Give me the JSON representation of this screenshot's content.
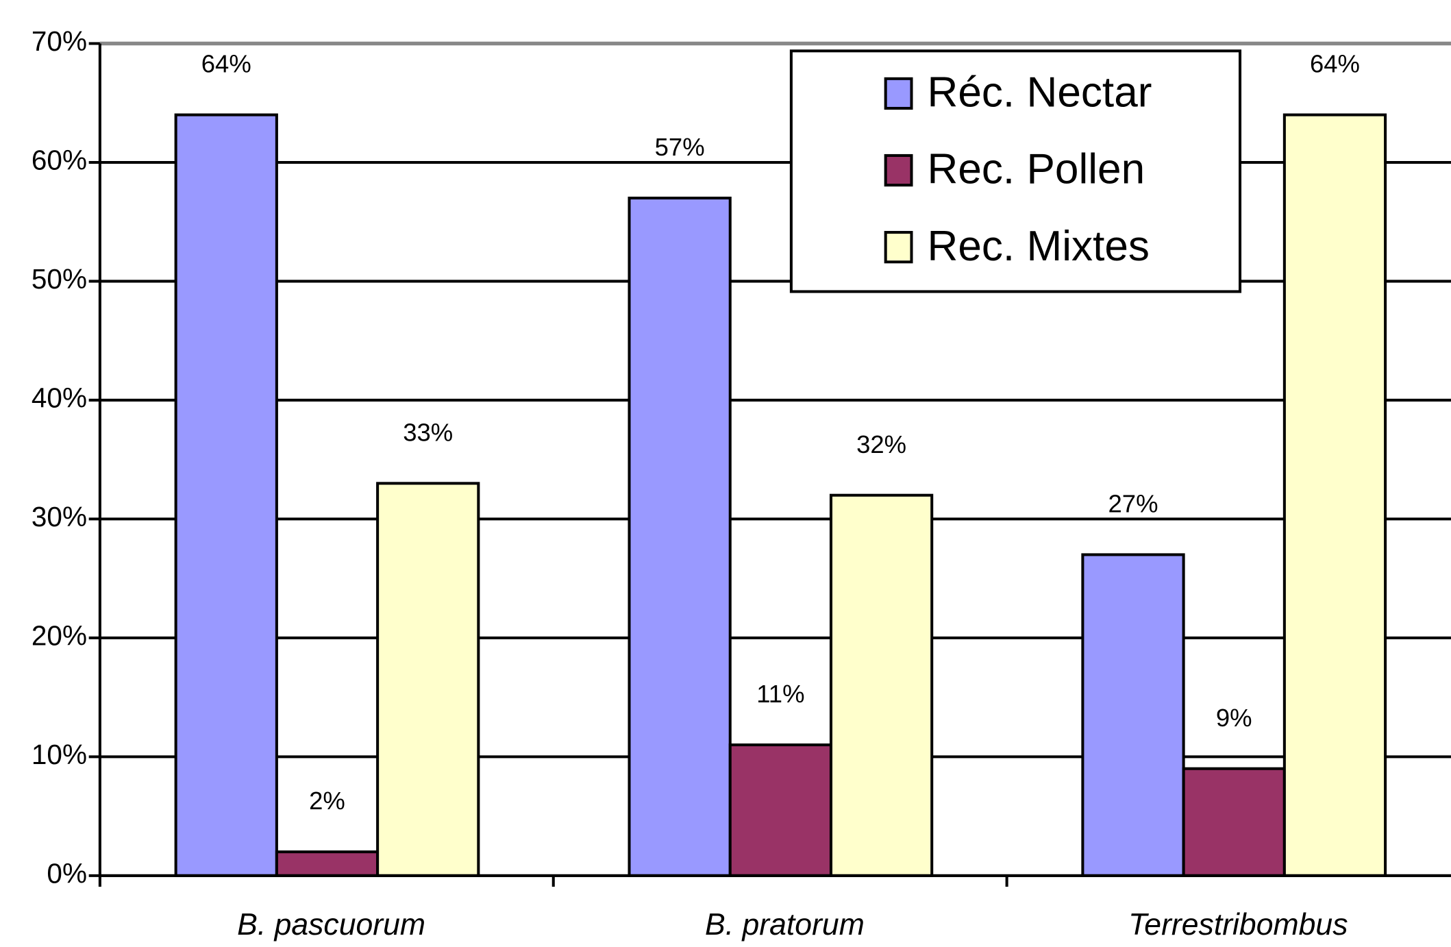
{
  "chart_data": {
    "type": "bar",
    "categories": [
      "B. pascuorum",
      "B. pratorum",
      "Terrestribombus"
    ],
    "series": [
      {
        "name": "Réc. Nectar",
        "color": "#9999ff",
        "values": [
          64,
          57,
          27
        ],
        "value_labels": [
          "64%",
          "57%",
          "27%"
        ]
      },
      {
        "name": "Rec. Pollen",
        "color": "#993366",
        "values": [
          2,
          11,
          9
        ],
        "value_labels": [
          "2%",
          "11%",
          "9%"
        ]
      },
      {
        "name": "Rec. Mixtes",
        "color": "#ffffcc",
        "values": [
          33,
          32,
          64
        ],
        "value_labels": [
          "33%",
          "32%",
          "64%"
        ]
      }
    ],
    "ylim": [
      0,
      70
    ],
    "yticks": [
      {
        "value": 0,
        "label": "0%"
      },
      {
        "value": 10,
        "label": "10%"
      },
      {
        "value": 20,
        "label": "20%"
      },
      {
        "value": 30,
        "label": "30%"
      },
      {
        "value": 40,
        "label": "40%"
      },
      {
        "value": 50,
        "label": "50%"
      },
      {
        "value": 60,
        "label": "60%"
      },
      {
        "value": 70,
        "label": "70%"
      }
    ],
    "grid": true,
    "legend": "top-right"
  }
}
